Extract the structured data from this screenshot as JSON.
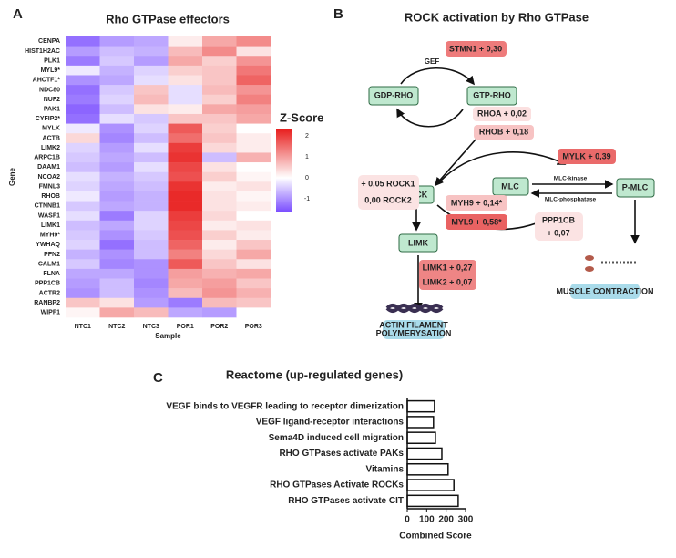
{
  "panel_labels": [
    "A",
    "B",
    "C"
  ],
  "chart_data": [
    {
      "type": "heatmap",
      "title": "Rho GTPase effectors",
      "x_label": "Sample",
      "y_label": "Gene",
      "columns": [
        "NTC1",
        "NTC2",
        "NTC3",
        "POR1",
        "POR2",
        "POR3"
      ],
      "rows": [
        "CENPA",
        "HIST1H2AC",
        "PLK1",
        "MYL9*",
        "AHCTF1*",
        "NDC80",
        "NUF2",
        "PAK1",
        "CYFIP2*",
        "MYLK",
        "ACTB",
        "LIMK2",
        "ARPC1B",
        "DAAM1",
        "NCOA2",
        "FMNL3",
        "RHOB",
        "CTNNB1",
        "WASF1",
        "LIMK1",
        "MYH9*",
        "YWHAQ",
        "PFN2",
        "CALM1",
        "FLNA",
        "PPP1CB",
        "ACTR2",
        "RANBP2",
        "WIPF1"
      ],
      "values": [
        [
          -1.3,
          -0.9,
          -0.8,
          0.2,
          0.9,
          1.2
        ],
        [
          -0.9,
          -0.6,
          -0.7,
          0.7,
          1.2,
          0.3
        ],
        [
          -1.2,
          -0.5,
          -0.9,
          0.9,
          0.5,
          1.1
        ],
        [
          -0.2,
          -0.7,
          -0.4,
          0.5,
          0.6,
          1.4
        ],
        [
          -1.0,
          -0.8,
          -0.3,
          0.3,
          0.6,
          1.6
        ],
        [
          -1.3,
          -0.5,
          0.6,
          -0.3,
          0.7,
          1.1
        ],
        [
          -1.2,
          -0.4,
          0.7,
          -0.3,
          0.5,
          1.3
        ],
        [
          -1.4,
          -0.6,
          0.3,
          0.2,
          0.9,
          1.0
        ],
        [
          -1.3,
          -0.3,
          -0.5,
          0.6,
          0.6,
          0.9
        ],
        [
          -0.2,
          -1.0,
          -0.4,
          1.7,
          0.5,
          0.0
        ],
        [
          0.4,
          -1.1,
          -0.6,
          1.5,
          0.6,
          0.2
        ],
        [
          -0.4,
          -0.9,
          -0.3,
          2.0,
          0.4,
          0.2
        ],
        [
          -0.5,
          -0.8,
          -0.6,
          2.1,
          -0.6,
          0.8
        ],
        [
          -0.6,
          -0.9,
          -0.3,
          1.9,
          0.3,
          0.0
        ],
        [
          -0.3,
          -0.7,
          -0.5,
          1.8,
          0.5,
          0.1
        ],
        [
          -0.4,
          -0.8,
          -0.6,
          2.1,
          0.2,
          0.3
        ],
        [
          -0.2,
          -0.9,
          -0.7,
          2.2,
          0.3,
          0.1
        ],
        [
          -0.5,
          -0.8,
          -0.7,
          2.2,
          0.3,
          0.2
        ],
        [
          -0.3,
          -1.2,
          -0.4,
          2.0,
          0.4,
          0.0
        ],
        [
          -0.6,
          -0.8,
          -0.4,
          1.9,
          0.2,
          0.3
        ],
        [
          -0.5,
          -1.0,
          -0.5,
          1.8,
          0.5,
          0.2
        ],
        [
          -0.4,
          -1.3,
          -0.6,
          1.6,
          0.2,
          0.6
        ],
        [
          -0.7,
          -1.0,
          -0.6,
          1.3,
          0.4,
          0.9
        ],
        [
          -0.5,
          -1.1,
          -1.0,
          1.7,
          0.6,
          0.3
        ],
        [
          -0.8,
          -0.8,
          -1.0,
          1.0,
          0.8,
          0.9
        ],
        [
          -0.9,
          -0.6,
          -1.1,
          0.9,
          1.0,
          0.6
        ],
        [
          -1.0,
          -0.6,
          -1.0,
          0.7,
          1.1,
          0.8
        ],
        [
          0.6,
          0.3,
          -0.9,
          -1.2,
          0.7,
          0.6
        ],
        [
          0.1,
          0.9,
          0.7,
          -0.8,
          -0.9,
          0.0
        ]
      ],
      "colorbar_title": "Z-Score",
      "zlim": [
        -1.6,
        2.3
      ],
      "zticks": [
        -1,
        0,
        1,
        2
      ],
      "colors": {
        "low": "#7b4fff",
        "mid": "#ffffff",
        "high": "#e8201f"
      }
    },
    {
      "type": "barh",
      "title": "Reactome (up-regulated genes)",
      "x_label": "Combined Score",
      "categories": [
        "VEGF binds to VEGFR leading to receptor dimerization",
        "VEGF ligand-receptor interactions",
        "Sema4D induced cell migration",
        "RHO GTPases activate PAKs",
        "Vitamins",
        "RHO GTPases Activate ROCKs",
        "RHO GTPases activate CIT"
      ],
      "values": [
        140,
        135,
        145,
        178,
        210,
        240,
        262
      ],
      "color": "#ffffff",
      "edge_color": "#111111",
      "xlim": [
        0,
        300
      ],
      "xticks": [
        0,
        100,
        200,
        300
      ]
    }
  ],
  "diagram": {
    "title": "ROCK activation by Rho GTPase",
    "nodes": [
      "GDP-RHO",
      "GTP-RHO",
      "ROCK",
      "LIMK",
      "MLC",
      "P-MLC"
    ],
    "edge_labels": [
      "GEF",
      "MLC-kinase",
      "MLC-phosphatase"
    ],
    "annotations": [
      "STMN1 + 0,30",
      "RHOA + 0,02",
      "RHOB + 0,18",
      "MYLK + 0,39",
      "+ 0,05 ROCK1",
      "0,00 ROCK2",
      "MYH9 + 0,14*",
      "MYL9 + 0,58*",
      "PPP1CB",
      "+ 0,07",
      "LIMK1 + 0,27",
      "LIMK2 + 0,07"
    ],
    "outcomes": [
      "ACTIN FILAMENT",
      "POLYMERYSATION",
      "MUSCLE CONTRACTION"
    ]
  }
}
